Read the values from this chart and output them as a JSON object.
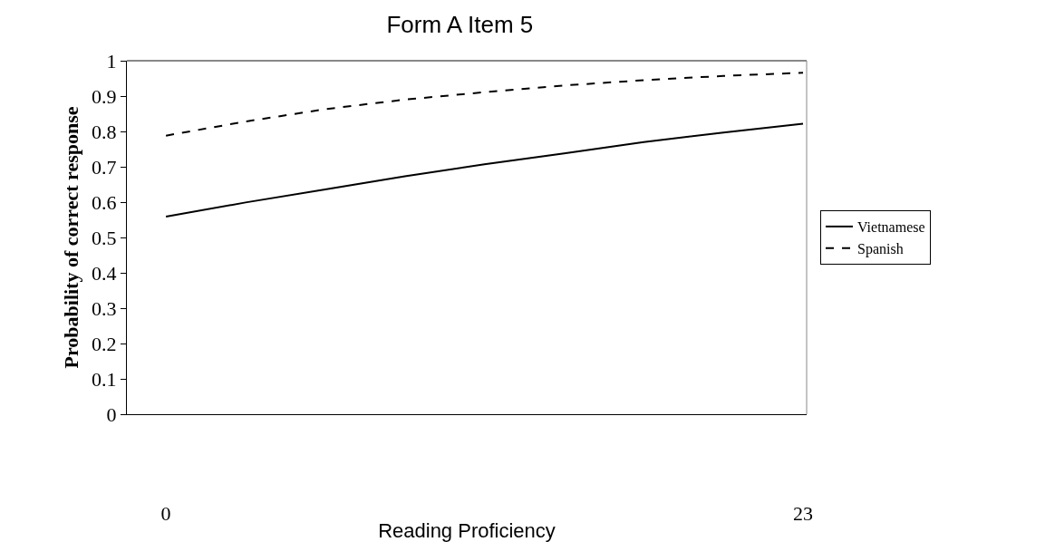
{
  "chart_data": {
    "type": "line",
    "title": "Form A Item 5",
    "xlabel": "Reading Proficiency",
    "ylabel": "Probability of correct response",
    "x": [
      0,
      2.875,
      5.75,
      8.625,
      11.5,
      14.375,
      17.25,
      20.125,
      23
    ],
    "series": [
      {
        "name": "Vietnamese",
        "color": "#000000",
        "line_style": "solid",
        "values": [
          0.559,
          0.599,
          0.636,
          0.673,
          0.707,
          0.738,
          0.77,
          0.797,
          0.822
        ]
      },
      {
        "name": "Spanish",
        "color": "#000000",
        "line_style": "dashed",
        "values": [
          0.788,
          0.828,
          0.863,
          0.89,
          0.911,
          0.93,
          0.945,
          0.957,
          0.966
        ]
      }
    ],
    "xlim": [
      -1.41,
      23.13
    ],
    "xticks": [
      0,
      23
    ],
    "ylim": [
      0,
      1
    ],
    "yticks": [
      0,
      0.1,
      0.2,
      0.3,
      0.4,
      0.5,
      0.6,
      0.7,
      0.8,
      0.9,
      1
    ],
    "grid": false,
    "legend": "right",
    "marker": "none"
  }
}
